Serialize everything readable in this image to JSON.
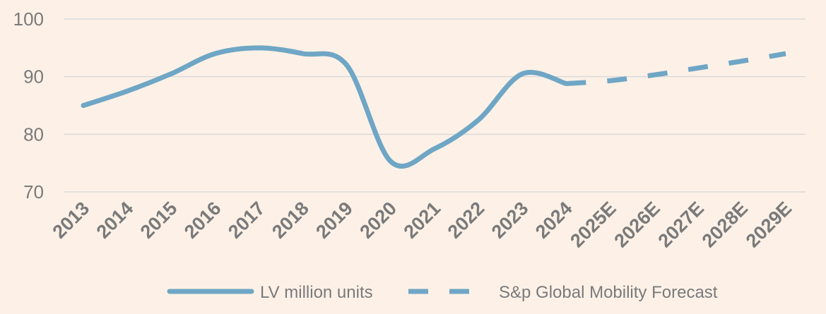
{
  "chart_data": {
    "type": "line",
    "categories": [
      "2013",
      "2014",
      "2015",
      "2016",
      "2017",
      "2018",
      "2019",
      "2020",
      "2021",
      "2022",
      "2023",
      "2024",
      "2025E",
      "2026E",
      "2027E",
      "2028E",
      "2029E"
    ],
    "ylim": [
      70,
      100
    ],
    "yticks": [
      70,
      80,
      90,
      100
    ],
    "grid": true,
    "legend_position": "bottom",
    "series": [
      {
        "name": "LV million units",
        "style": "solid",
        "color": "#6fa6c5",
        "values": [
          85,
          87.5,
          90.5,
          94,
          95,
          94,
          92,
          75.3,
          77.5,
          82.5,
          90.5,
          88.8,
          null,
          null,
          null,
          null,
          null
        ]
      },
      {
        "name": "S&p Global Mobility Forecast",
        "style": "dashed",
        "color": "#6fa6c5",
        "values": [
          null,
          null,
          null,
          null,
          null,
          null,
          null,
          null,
          null,
          null,
          null,
          88.8,
          89.3,
          90.3,
          91.5,
          92.7,
          94
        ]
      }
    ]
  }
}
